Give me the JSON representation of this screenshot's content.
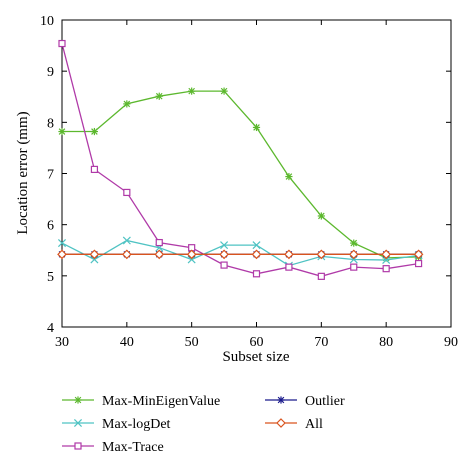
{
  "chart_data": {
    "type": "line",
    "title": "",
    "xlabel": "Subset size",
    "ylabel": "Location error (mm)",
    "xlim": [
      30,
      90
    ],
    "ylim": [
      4,
      10
    ],
    "xticks": [
      30,
      40,
      50,
      60,
      70,
      80,
      90
    ],
    "yticks": [
      4,
      5,
      6,
      7,
      8,
      9,
      10
    ],
    "grid": false,
    "legend_position": "below",
    "x": [
      30,
      35,
      40,
      45,
      50,
      55,
      60,
      65,
      70,
      75,
      80,
      85
    ],
    "series": [
      {
        "name": "Max-MinEigenValue",
        "color": "#5cb82e",
        "marker": "asterisk",
        "values": [
          7.82,
          7.82,
          8.36,
          8.51,
          8.61,
          8.61,
          7.9,
          6.94,
          6.17,
          5.64,
          5.35,
          5.37
        ]
      },
      {
        "name": "Max-logDet",
        "color": "#4fc3c3",
        "marker": "x",
        "values": [
          5.64,
          5.32,
          5.69,
          5.55,
          5.32,
          5.6,
          5.6,
          5.2,
          5.38,
          5.32,
          5.31,
          5.4
        ]
      },
      {
        "name": "Max-Trace",
        "color": "#b03aa8",
        "marker": "square",
        "values": [
          9.54,
          7.08,
          6.63,
          5.65,
          5.55,
          5.21,
          5.04,
          5.17,
          4.99,
          5.17,
          5.14,
          5.24
        ]
      },
      {
        "name": "Outlier",
        "color": "#1a1a8c",
        "marker": "asterisk",
        "values": [
          5.42,
          5.42,
          5.42,
          5.42,
          5.42,
          5.42,
          5.42,
          5.42,
          5.42,
          5.42,
          5.42,
          5.42
        ]
      },
      {
        "name": "All",
        "color": "#d9541e",
        "marker": "diamond",
        "values": [
          5.42,
          5.42,
          5.42,
          5.42,
          5.42,
          5.42,
          5.42,
          5.42,
          5.42,
          5.42,
          5.42,
          5.42
        ]
      }
    ],
    "legend": {
      "columns": [
        [
          "Max-MinEigenValue",
          "Max-logDet",
          "Max-Trace"
        ],
        [
          "Outlier",
          "All"
        ]
      ]
    }
  }
}
